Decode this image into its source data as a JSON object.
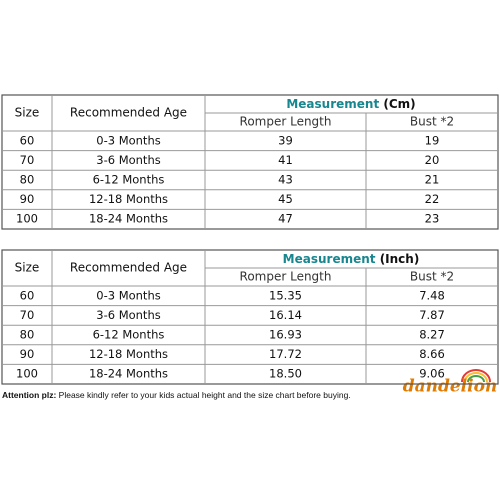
{
  "tables": [
    {
      "headers": {
        "size": "Size",
        "age": "Recommended Age",
        "measurement": "Measurement",
        "unit": "(Cm)",
        "length": "Romper Length",
        "bust": "Bust *2"
      },
      "rows": [
        [
          "60",
          "0-3 Months",
          "39",
          "19"
        ],
        [
          "70",
          "3-6 Months",
          "41",
          "20"
        ],
        [
          "80",
          "6-12 Months",
          "43",
          "21"
        ],
        [
          "90",
          "12-18 Months",
          "45",
          "22"
        ],
        [
          "100",
          "18-24 Months",
          "47",
          "23"
        ]
      ]
    },
    {
      "headers": {
        "size": "Size",
        "age": "Recommended Age",
        "measurement": "Measurement",
        "unit": "(Inch)",
        "length": "Romper Length",
        "bust": "Bust *2"
      },
      "rows": [
        [
          "60",
          "0-3 Months",
          "15.35",
          "7.48"
        ],
        [
          "70",
          "3-6 Months",
          "16.14",
          "7.87"
        ],
        [
          "80",
          "6-12 Months",
          "16.93",
          "8.27"
        ],
        [
          "90",
          "12-18 Months",
          "17.72",
          "8.66"
        ],
        [
          "100",
          "18-24 Months",
          "18.50",
          "9.06"
        ]
      ]
    }
  ],
  "footer": {
    "label": "Attention plz:",
    "text": "Please kindly refer to your kids actual height and the size chart before buying."
  },
  "logo": "dandelion"
}
